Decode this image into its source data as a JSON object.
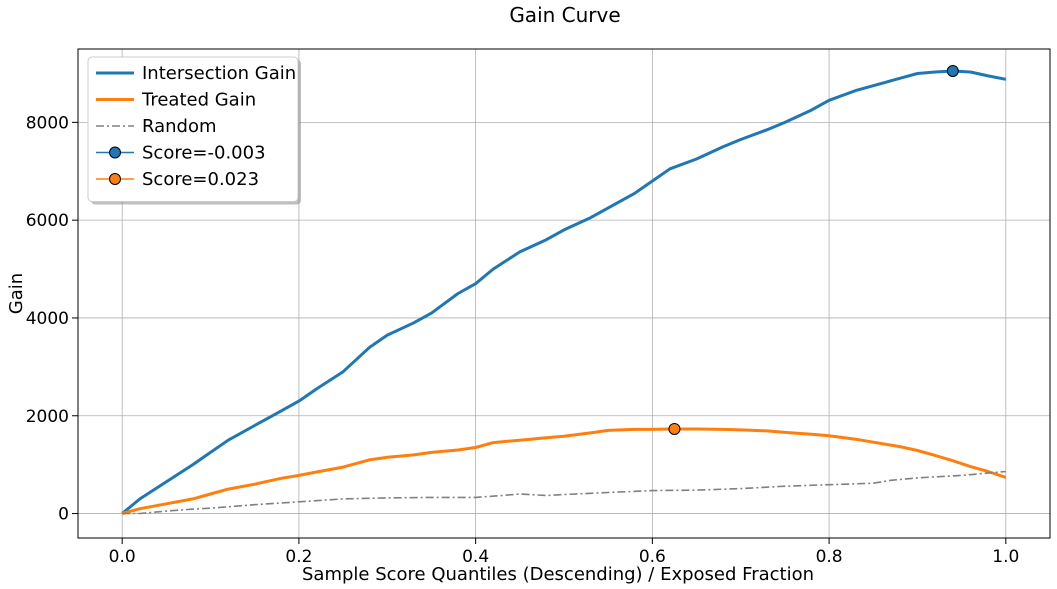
{
  "chart_data": {
    "type": "line",
    "title": "Gain Curve",
    "xlabel": "Sample Score Quantiles (Descending) / Exposed Fraction",
    "ylabel": "Gain",
    "xlim": [
      -0.05,
      1.05
    ],
    "ylim": [
      -500,
      9500
    ],
    "xticks": [
      0.0,
      0.2,
      0.4,
      0.6,
      0.8,
      1.0
    ],
    "xtick_labels": [
      "0.0",
      "0.2",
      "0.4",
      "0.6",
      "0.8",
      "1.0"
    ],
    "yticks": [
      0,
      2000,
      4000,
      6000,
      8000
    ],
    "ytick_labels": [
      "0",
      "2000",
      "4000",
      "6000",
      "8000"
    ],
    "grid": true,
    "legend_position": "top-left",
    "series": [
      {
        "name": "Intersection Gain",
        "color": "#1f77b4",
        "style": "solid",
        "x": [
          0.0,
          0.02,
          0.05,
          0.08,
          0.1,
          0.12,
          0.15,
          0.18,
          0.2,
          0.22,
          0.25,
          0.28,
          0.3,
          0.33,
          0.35,
          0.38,
          0.4,
          0.42,
          0.45,
          0.48,
          0.5,
          0.53,
          0.55,
          0.58,
          0.6,
          0.62,
          0.65,
          0.68,
          0.7,
          0.73,
          0.75,
          0.78,
          0.8,
          0.83,
          0.85,
          0.88,
          0.9,
          0.92,
          0.94,
          0.96,
          0.98,
          1.0
        ],
        "y": [
          0,
          300,
          650,
          1000,
          1250,
          1500,
          1800,
          2100,
          2300,
          2550,
          2900,
          3400,
          3650,
          3900,
          4100,
          4500,
          4700,
          5000,
          5350,
          5600,
          5800,
          6050,
          6250,
          6550,
          6800,
          7050,
          7250,
          7500,
          7650,
          7850,
          8000,
          8250,
          8450,
          8650,
          8750,
          8900,
          9000,
          9030,
          9050,
          9030,
          8950,
          8880
        ]
      },
      {
        "name": "Treated Gain",
        "color": "#ff7f0e",
        "style": "solid",
        "x": [
          0.0,
          0.02,
          0.05,
          0.08,
          0.1,
          0.12,
          0.15,
          0.18,
          0.2,
          0.22,
          0.25,
          0.28,
          0.3,
          0.33,
          0.35,
          0.38,
          0.4,
          0.42,
          0.45,
          0.48,
          0.5,
          0.53,
          0.55,
          0.58,
          0.6,
          0.62,
          0.65,
          0.68,
          0.7,
          0.73,
          0.75,
          0.78,
          0.8,
          0.83,
          0.85,
          0.88,
          0.9,
          0.92,
          0.94,
          0.96,
          0.98,
          1.0
        ],
        "y": [
          0,
          100,
          200,
          300,
          400,
          500,
          600,
          720,
          780,
          850,
          950,
          1100,
          1150,
          1200,
          1250,
          1300,
          1350,
          1450,
          1500,
          1550,
          1580,
          1650,
          1700,
          1720,
          1720,
          1730,
          1730,
          1720,
          1710,
          1690,
          1660,
          1620,
          1590,
          1520,
          1460,
          1370,
          1290,
          1190,
          1080,
          960,
          860,
          740
        ]
      },
      {
        "name": "Random",
        "color": "#808080",
        "style": "dashdot",
        "x": [
          0.0,
          0.02,
          0.05,
          0.08,
          0.1,
          0.15,
          0.2,
          0.25,
          0.3,
          0.35,
          0.4,
          0.43,
          0.45,
          0.48,
          0.5,
          0.55,
          0.6,
          0.65,
          0.7,
          0.75,
          0.8,
          0.85,
          0.87,
          0.9,
          0.95,
          1.0
        ],
        "y": [
          0,
          0,
          50,
          90,
          110,
          180,
          240,
          300,
          320,
          330,
          330,
          370,
          400,
          370,
          390,
          430,
          470,
          480,
          510,
          560,
          590,
          620,
          680,
          730,
          780,
          860
        ]
      }
    ],
    "markers": [
      {
        "name": "Score=-0.003",
        "x": 0.94,
        "y": 9050,
        "color": "#1f77b4"
      },
      {
        "name": "Score=0.023",
        "x": 0.625,
        "y": 1730,
        "color": "#ff7f0e"
      }
    ]
  }
}
